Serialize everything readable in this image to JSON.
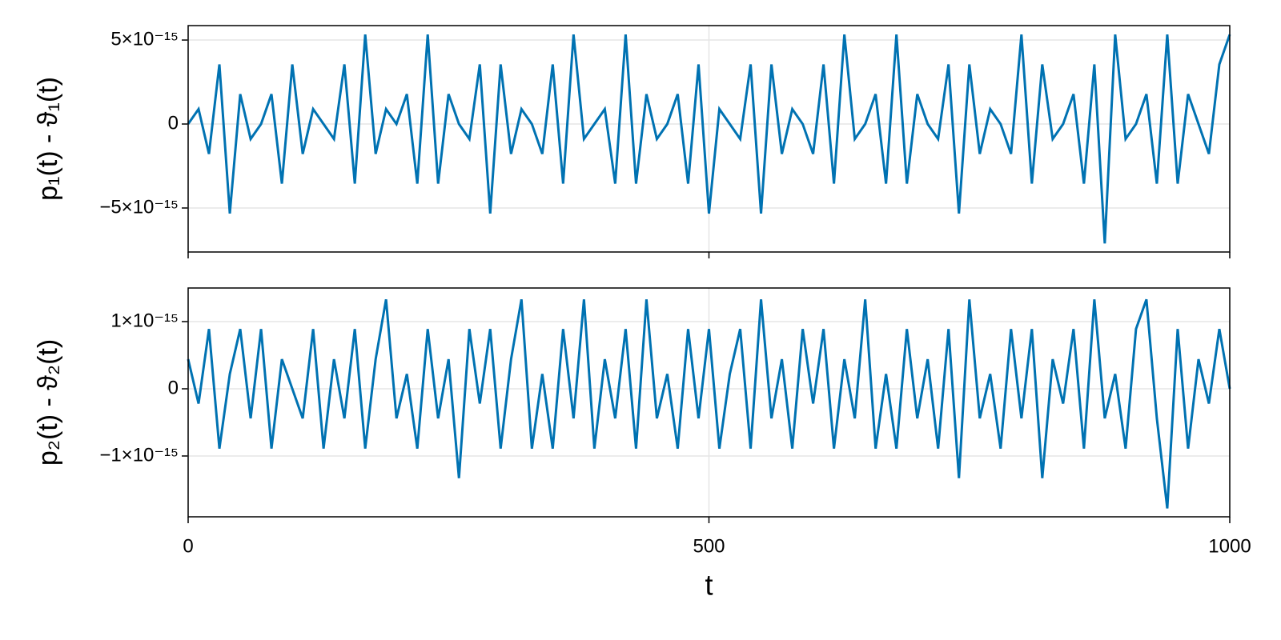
{
  "chart_data": [
    {
      "type": "line",
      "ylabel": "p₁(t) - ϑ₁(t)",
      "x": [
        0,
        10,
        20,
        30,
        40,
        50,
        60,
        70,
        80,
        90,
        100,
        110,
        120,
        130,
        140,
        150,
        160,
        170,
        180,
        190,
        200,
        210,
        220,
        230,
        240,
        250,
        260,
        270,
        280,
        290,
        300,
        310,
        320,
        330,
        340,
        350,
        360,
        370,
        380,
        390,
        400,
        410,
        420,
        430,
        440,
        450,
        460,
        470,
        480,
        490,
        500,
        510,
        520,
        530,
        540,
        550,
        560,
        570,
        580,
        590,
        600,
        610,
        620,
        630,
        640,
        650,
        660,
        670,
        680,
        690,
        700,
        710,
        720,
        730,
        740,
        750,
        760,
        770,
        780,
        790,
        800,
        810,
        820,
        830,
        840,
        850,
        860,
        870,
        880,
        890,
        900,
        910,
        920,
        930,
        940,
        950,
        960,
        970,
        980,
        990,
        1000
      ],
      "series": [
        {
          "color": "#0072b2",
          "values": [
            0,
            8.9e-16,
            -1.78e-15,
            3.55e-15,
            -5.33e-15,
            1.78e-15,
            -8.9e-16,
            0,
            1.78e-15,
            -3.55e-15,
            3.55e-15,
            -1.78e-15,
            8.9e-16,
            0,
            -8.9e-16,
            3.55e-15,
            -3.55e-15,
            5.33e-15,
            -1.78e-15,
            8.9e-16,
            0,
            1.78e-15,
            -3.55e-15,
            5.33e-15,
            -3.55e-15,
            1.78e-15,
            0,
            -8.9e-16,
            3.55e-15,
            -5.33e-15,
            3.55e-15,
            -1.78e-15,
            8.9e-16,
            0,
            -1.78e-15,
            3.55e-15,
            -3.55e-15,
            5.33e-15,
            -8.9e-16,
            0,
            8.9e-16,
            -3.55e-15,
            5.33e-15,
            -3.55e-15,
            1.78e-15,
            -8.9e-16,
            0,
            1.78e-15,
            -3.55e-15,
            3.55e-15,
            -5.33e-15,
            8.9e-16,
            0,
            -8.9e-16,
            3.55e-15,
            -5.33e-15,
            3.55e-15,
            -1.78e-15,
            8.9e-16,
            0,
            -1.78e-15,
            3.55e-15,
            -3.55e-15,
            5.33e-15,
            -8.9e-16,
            0,
            1.78e-15,
            -3.55e-15,
            5.33e-15,
            -3.55e-15,
            1.78e-15,
            0,
            -8.9e-16,
            3.55e-15,
            -5.33e-15,
            3.55e-15,
            -1.78e-15,
            8.9e-16,
            0,
            -1.78e-15,
            5.33e-15,
            -3.55e-15,
            3.55e-15,
            -8.9e-16,
            0,
            1.78e-15,
            -3.55e-15,
            3.55e-15,
            -7.11e-15,
            5.33e-15,
            -8.9e-16,
            0,
            1.78e-15,
            -3.55e-15,
            5.33e-15,
            -3.55e-15,
            1.78e-15,
            0,
            -1.78e-15,
            3.55e-15,
            5.33e-15
          ]
        }
      ],
      "xlim": [
        0,
        1000
      ],
      "xticks": [
        0,
        500,
        1000
      ],
      "ylim": [
        -7.62e-15,
        5.86e-15
      ],
      "yticks": [
        {
          "value": -5e-15,
          "label": "−5×10⁻¹⁵"
        },
        0,
        {
          "value": 5e-15,
          "label": "5×10⁻¹⁵"
        }
      ],
      "grid": true
    },
    {
      "type": "line",
      "ylabel": "p₂(t) - ϑ₂(t)",
      "xlabel": "t",
      "x": [
        0,
        10,
        20,
        30,
        40,
        50,
        60,
        70,
        80,
        90,
        100,
        110,
        120,
        130,
        140,
        150,
        160,
        170,
        180,
        190,
        200,
        210,
        220,
        230,
        240,
        250,
        260,
        270,
        280,
        290,
        300,
        310,
        320,
        330,
        340,
        350,
        360,
        370,
        380,
        390,
        400,
        410,
        420,
        430,
        440,
        450,
        460,
        470,
        480,
        490,
        500,
        510,
        520,
        530,
        540,
        550,
        560,
        570,
        580,
        590,
        600,
        610,
        620,
        630,
        640,
        650,
        660,
        670,
        680,
        690,
        700,
        710,
        720,
        730,
        740,
        750,
        760,
        770,
        780,
        790,
        800,
        810,
        820,
        830,
        840,
        850,
        860,
        870,
        880,
        890,
        900,
        910,
        920,
        930,
        940,
        950,
        960,
        970,
        980,
        990,
        1000
      ],
      "series": [
        {
          "color": "#0072b2",
          "values": [
            4.4e-16,
            -2.2e-16,
            8.9e-16,
            -8.9e-16,
            2.2e-16,
            8.9e-16,
            -4.4e-16,
            8.9e-16,
            -8.9e-16,
            4.4e-16,
            0,
            -4.4e-16,
            8.9e-16,
            -8.9e-16,
            4.4e-16,
            -4.4e-16,
            8.9e-16,
            -8.9e-16,
            4.4e-16,
            1.33e-15,
            -4.4e-16,
            2.2e-16,
            -8.9e-16,
            8.9e-16,
            -4.4e-16,
            4.4e-16,
            -1.33e-15,
            8.9e-16,
            -2.2e-16,
            8.9e-16,
            -8.9e-16,
            4.4e-16,
            1.33e-15,
            -8.9e-16,
            2.2e-16,
            -8.9e-16,
            8.9e-16,
            -4.4e-16,
            1.33e-15,
            -8.9e-16,
            4.4e-16,
            -4.4e-16,
            8.9e-16,
            -8.9e-16,
            1.33e-15,
            -4.4e-16,
            2.2e-16,
            -8.9e-16,
            8.9e-16,
            -4.4e-16,
            8.9e-16,
            -8.9e-16,
            2.2e-16,
            8.9e-16,
            -8.9e-16,
            1.33e-15,
            -4.4e-16,
            4.4e-16,
            -8.9e-16,
            8.9e-16,
            -2.2e-16,
            8.9e-16,
            -8.9e-16,
            4.4e-16,
            -4.4e-16,
            1.33e-15,
            -8.9e-16,
            2.2e-16,
            -8.9e-16,
            8.9e-16,
            -4.4e-16,
            4.4e-16,
            -8.9e-16,
            8.9e-16,
            -1.33e-15,
            1.33e-15,
            -4.4e-16,
            2.2e-16,
            -8.9e-16,
            8.9e-16,
            -4.4e-16,
            8.9e-16,
            -1.33e-15,
            4.4e-16,
            -2.2e-16,
            8.9e-16,
            -8.9e-16,
            1.33e-15,
            -4.4e-16,
            2.2e-16,
            -8.9e-16,
            8.9e-16,
            1.33e-15,
            -4.4e-16,
            -1.78e-15,
            8.9e-16,
            -8.9e-16,
            4.4e-16,
            -2.2e-16,
            8.9e-16,
            0
          ]
        }
      ],
      "xlim": [
        0,
        1000
      ],
      "xticks": [
        0,
        500,
        1000
      ],
      "ylim": [
        -1.905e-15,
        1.5e-15
      ],
      "yticks": [
        {
          "value": -1e-15,
          "label": "−1×10⁻¹⁵"
        },
        0,
        {
          "value": 1e-15,
          "label": "1×10⁻¹⁵"
        }
      ],
      "grid": true
    }
  ]
}
